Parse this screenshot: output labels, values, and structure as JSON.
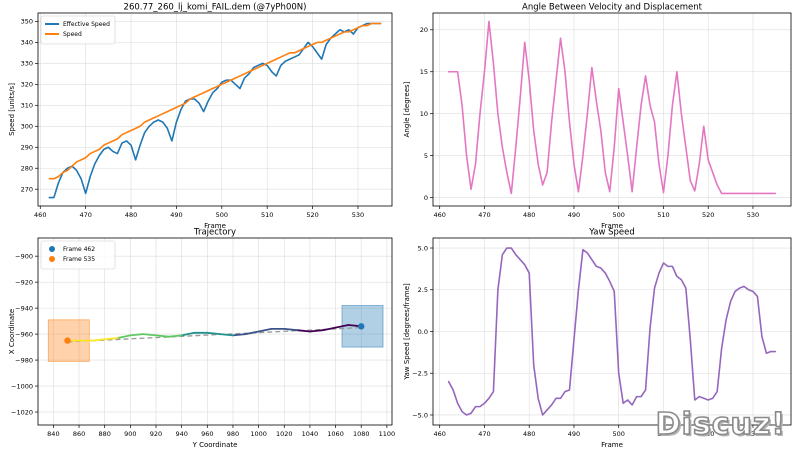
{
  "figure": {
    "watermark": "Discuz!"
  },
  "chart_data": [
    {
      "type": "line",
      "title": "260.77_260_lj_komi_FAIL.dem (@7yPh00N)",
      "xlabel": "Frame",
      "ylabel": "Speed [units/s]",
      "xlim": [
        459.5,
        537.5
      ],
      "ylim": [
        262,
        354
      ],
      "xticks": [
        460,
        470,
        480,
        490,
        500,
        510,
        520,
        530
      ],
      "yticks": [
        270,
        280,
        290,
        300,
        310,
        320,
        330,
        340,
        350
      ],
      "grid": true,
      "legend": "top-left",
      "series": [
        {
          "name": "Effective Speed",
          "color": "#1f77b4",
          "x": [
            462,
            463,
            464,
            465,
            466,
            467,
            468,
            469,
            470,
            471,
            472,
            473,
            474,
            475,
            476,
            477,
            478,
            479,
            480,
            481,
            482,
            483,
            484,
            485,
            486,
            487,
            488,
            489,
            490,
            491,
            492,
            493,
            494,
            495,
            496,
            497,
            498,
            499,
            500,
            501,
            502,
            503,
            504,
            505,
            506,
            507,
            508,
            509,
            510,
            511,
            512,
            513,
            514,
            515,
            516,
            517,
            518,
            519,
            520,
            521,
            522,
            523,
            524,
            525,
            526,
            527,
            528,
            529,
            530,
            531,
            532,
            533,
            534,
            535
          ],
          "y": [
            266,
            266,
            273,
            278,
            280,
            281,
            279,
            275,
            268,
            276,
            282,
            286,
            289,
            290,
            288,
            287,
            292,
            293,
            291,
            284,
            291,
            297,
            300,
            302,
            303,
            302,
            299,
            293,
            302,
            308,
            312,
            313,
            313,
            311,
            307,
            312,
            316,
            318,
            321,
            322,
            322,
            320,
            318,
            323,
            325,
            328,
            329,
            330,
            329,
            326,
            324,
            329,
            331,
            332,
            333,
            334,
            337,
            340,
            338,
            335,
            332,
            339,
            342,
            344,
            346,
            345,
            346,
            344,
            347,
            348,
            349,
            349,
            349,
            349
          ]
        },
        {
          "name": "Speed",
          "color": "#ff7f0e",
          "x": [
            462,
            463,
            464,
            465,
            466,
            467,
            468,
            469,
            470,
            471,
            472,
            473,
            474,
            475,
            476,
            477,
            478,
            479,
            480,
            481,
            482,
            483,
            484,
            485,
            486,
            487,
            488,
            489,
            490,
            491,
            492,
            493,
            494,
            495,
            496,
            497,
            498,
            499,
            500,
            501,
            502,
            503,
            504,
            505,
            506,
            507,
            508,
            509,
            510,
            511,
            512,
            513,
            514,
            515,
            516,
            517,
            518,
            519,
            520,
            521,
            522,
            523,
            524,
            525,
            526,
            527,
            528,
            529,
            530,
            531,
            532,
            533,
            534,
            535
          ],
          "y": [
            275,
            275,
            276,
            278,
            279,
            281,
            283,
            284,
            285,
            287,
            288,
            289,
            291,
            292,
            293,
            294,
            296,
            297,
            298,
            299,
            300,
            302,
            303,
            304,
            305,
            306,
            307,
            308,
            309,
            310,
            311,
            313,
            314,
            315,
            316,
            317,
            318,
            319,
            320,
            321,
            322,
            323,
            324,
            325,
            326,
            327,
            328,
            329,
            330,
            331,
            332,
            333,
            334,
            335,
            335,
            336,
            337,
            338,
            339,
            340,
            340,
            341,
            342,
            343,
            344,
            345,
            345,
            346,
            347,
            348,
            348,
            349,
            349,
            349
          ]
        }
      ]
    },
    {
      "type": "line",
      "title": "Angle Between Velocity and Displacement",
      "xlabel": "Frame",
      "ylabel": "Angle [degrees]",
      "xlim": [
        458.5,
        538.5
      ],
      "ylim": [
        -1,
        22
      ],
      "xticks": [
        460,
        470,
        480,
        490,
        500,
        510,
        520,
        530
      ],
      "yticks": [
        0,
        5,
        10,
        15,
        20
      ],
      "grid": true,
      "series": [
        {
          "color": "#e377c2",
          "x": [
            462,
            464,
            465,
            466,
            467,
            468,
            469,
            470,
            471,
            472,
            473,
            474,
            475,
            476,
            477,
            478,
            479,
            480,
            481,
            482,
            483,
            484,
            485,
            486,
            487,
            488,
            489,
            490,
            491,
            492,
            493,
            494,
            495,
            496,
            497,
            498,
            499,
            500,
            501,
            502,
            503,
            504,
            505,
            506,
            507,
            508,
            509,
            510,
            511,
            512,
            513,
            514,
            515,
            516,
            517,
            518,
            519,
            520,
            521,
            522,
            523,
            524,
            525,
            526,
            527,
            528,
            529,
            530,
            531,
            532,
            533,
            534,
            535
          ],
          "y": [
            15,
            15,
            11,
            5,
            1,
            4,
            10,
            15,
            21,
            16,
            10,
            6,
            3,
            0.5,
            6,
            12,
            18.5,
            14,
            8,
            4,
            1.5,
            3,
            9,
            14,
            19,
            15,
            9,
            4,
            0.7,
            5,
            10,
            15.5,
            11.5,
            8,
            3,
            0.7,
            6,
            13,
            9,
            5,
            0.7,
            6,
            11,
            14.5,
            11,
            9,
            4,
            0.6,
            5,
            11,
            15,
            10,
            6,
            2,
            0.8,
            4,
            8.5,
            4.5,
            3,
            1.5,
            0.5,
            0.5,
            0.5,
            0.5,
            0.5,
            0.5,
            0.5,
            0.5,
            0.5,
            0.5,
            0.5,
            0.5,
            0.5
          ]
        }
      ]
    },
    {
      "type": "line",
      "title": "Trajectory",
      "xlabel": "Y Coordinate",
      "ylabel": "X Coordinate",
      "xlim": [
        828,
        1104
      ],
      "ylim": [
        -1030,
        -886
      ],
      "xticks": [
        840,
        860,
        880,
        900,
        920,
        940,
        960,
        980,
        1000,
        1020,
        1040,
        1060,
        1080,
        1100
      ],
      "yticks": [
        -900,
        -920,
        -940,
        -960,
        -980,
        -1000,
        -1020
      ],
      "grid": true,
      "legend": "top-left",
      "legend_entries": [
        {
          "name": "Frame 462",
          "color": "#1f77b4"
        },
        {
          "name": "Frame 535",
          "color": "#ff7f0e"
        }
      ],
      "path": {
        "x": [
          1080,
          1070,
          1060,
          1050,
          1040,
          1030,
          1020,
          1010,
          1000,
          990,
          980,
          970,
          960,
          950,
          940,
          930,
          920,
          910,
          900,
          890,
          880,
          870,
          860,
          851
        ],
        "y": [
          -954,
          -953,
          -955,
          -957,
          -958,
          -957,
          -956,
          -956,
          -958,
          -960,
          -961,
          -960,
          -959,
          -959,
          -961,
          -962,
          -961,
          -960,
          -961,
          -963,
          -964,
          -965,
          -965,
          -965
        ]
      },
      "trend": {
        "x": [
          851,
          1080
        ],
        "y": [
          -966,
          -955
        ]
      },
      "start": {
        "x": 1080,
        "y": -954,
        "color": "#1f77b4"
      },
      "end": {
        "x": 851,
        "y": -965,
        "color": "#ff7f0e"
      },
      "regions": [
        {
          "x": [
            1065,
            1097
          ],
          "y": [
            -938,
            -970
          ],
          "color": "#1f77b4"
        },
        {
          "x": [
            836,
            868
          ],
          "y": [
            -949,
            -981
          ],
          "color": "#ff7f0e"
        }
      ]
    },
    {
      "type": "line",
      "title": "Yaw Speed",
      "xlabel": "Frame",
      "ylabel": "Yaw Speed [degrees/frame]",
      "xlim": [
        458.5,
        538.5
      ],
      "ylim": [
        -5.6,
        5.6
      ],
      "xticks": [
        460,
        470,
        480,
        490,
        500,
        510,
        520,
        530
      ],
      "yticks": [
        -5.0,
        -2.5,
        0.0,
        2.5,
        5.0
      ],
      "ytick_labels": [
        "−5.0",
        "−2.5",
        "0.0",
        "2.5",
        "5.0"
      ],
      "grid": true,
      "series": [
        {
          "color": "#9467bd",
          "x": [
            462,
            463,
            464,
            465,
            466,
            467,
            468,
            469,
            470,
            471,
            472,
            473,
            474,
            475,
            476,
            477,
            478,
            479,
            480,
            481,
            482,
            483,
            484,
            485,
            486,
            487,
            488,
            489,
            490,
            491,
            492,
            493,
            494,
            495,
            496,
            497,
            498,
            499,
            500,
            501,
            502,
            503,
            504,
            505,
            506,
            507,
            508,
            509,
            510,
            511,
            512,
            513,
            514,
            515,
            516,
            517,
            518,
            519,
            520,
            521,
            522,
            523,
            524,
            525,
            526,
            527,
            528,
            529,
            530,
            531,
            532,
            533,
            534,
            535
          ],
          "y": [
            -3.0,
            -3.5,
            -4.3,
            -4.8,
            -5.0,
            -4.9,
            -4.5,
            -4.5,
            -4.3,
            -4.0,
            -3.6,
            2.5,
            4.6,
            5.0,
            5.0,
            4.6,
            4.3,
            4.0,
            3.5,
            -2.0,
            -4.0,
            -5.0,
            -4.7,
            -4.4,
            -4.0,
            -4.0,
            -3.6,
            -3.5,
            -0.5,
            2.5,
            4.9,
            4.7,
            4.3,
            3.9,
            3.8,
            3.5,
            3.0,
            2.4,
            -2.5,
            -4.3,
            -4.1,
            -4.4,
            -3.9,
            -3.9,
            -3.5,
            0.2,
            2.6,
            3.5,
            4.1,
            3.9,
            3.9,
            3.3,
            3.1,
            2.6,
            -0.5,
            -4.1,
            -3.9,
            -4.0,
            -4.1,
            -4.0,
            -3.6,
            -1.0,
            0.7,
            1.8,
            2.4,
            2.6,
            2.7,
            2.5,
            2.4,
            2.1,
            -0.3,
            -1.3,
            -1.2,
            -1.2
          ]
        }
      ]
    }
  ]
}
